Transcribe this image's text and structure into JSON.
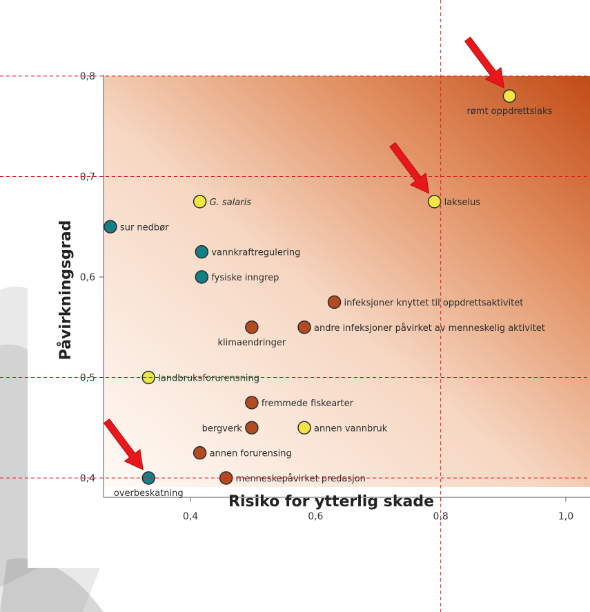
{
  "chart_data": {
    "type": "scatter",
    "title": "",
    "xlabel": "Risiko for ytterlig skade",
    "ylabel": "Påvirkningsgrad",
    "xlim": [
      0.26,
      1.06
    ],
    "ylim": [
      0.38,
      0.8
    ],
    "xticks": [
      {
        "value": 0.4,
        "label": "0,4"
      },
      {
        "value": 0.6,
        "label": "0,6"
      },
      {
        "value": 0.8,
        "label": "0,8"
      },
      {
        "value": 1.0,
        "label": "1,0"
      }
    ],
    "yticks": [
      {
        "value": 0.4,
        "label": "0,4"
      },
      {
        "value": 0.5,
        "label": "0,5"
      },
      {
        "value": 0.6,
        "label": "0,6"
      },
      {
        "value": 0.7,
        "label": "0,7"
      },
      {
        "value": 0.8,
        "label": "0,8"
      }
    ],
    "grid": false,
    "colors": {
      "teal": "#137f86",
      "orange": "#b24b22",
      "yellow": "#f1e447",
      "background_light": "#fffaf6",
      "background_dark": "#c24b16",
      "reference_lines": "#e8171b",
      "arrows": "#e8171b"
    },
    "points": [
      {
        "x": 0.91,
        "y": 0.78,
        "label": "rømt oppdrettslaks",
        "color": "yellow",
        "label_pos": "below"
      },
      {
        "x": 0.79,
        "y": 0.675,
        "label": "lakselus",
        "color": "yellow",
        "label_pos": "right"
      },
      {
        "x": 0.415,
        "y": 0.675,
        "label": "G. salaris",
        "color": "yellow",
        "label_pos": "right",
        "italic": true
      },
      {
        "x": 0.272,
        "y": 0.65,
        "label": "sur nedbør",
        "color": "teal",
        "label_pos": "right"
      },
      {
        "x": 0.418,
        "y": 0.625,
        "label": "vannkraftregulering",
        "color": "teal",
        "label_pos": "right"
      },
      {
        "x": 0.418,
        "y": 0.6,
        "label": "fysiske inngrep",
        "color": "teal",
        "label_pos": "right"
      },
      {
        "x": 0.63,
        "y": 0.575,
        "label": "infeksjoner knyttet til oppdrettsaktivitet",
        "color": "orange",
        "label_pos": "right"
      },
      {
        "x": 0.498,
        "y": 0.55,
        "label": "klimaendringer",
        "color": "orange",
        "label_pos": "below"
      },
      {
        "x": 0.582,
        "y": 0.55,
        "label": "andre infeksjoner påvirket av menneskelig aktivitet",
        "color": "orange",
        "label_pos": "right"
      },
      {
        "x": 0.333,
        "y": 0.5,
        "label": "landbruksforurensning",
        "color": "yellow",
        "label_pos": "right"
      },
      {
        "x": 0.498,
        "y": 0.475,
        "label": "fremmede fiskearter",
        "color": "orange",
        "label_pos": "right"
      },
      {
        "x": 0.498,
        "y": 0.45,
        "label": "bergverk",
        "color": "orange",
        "label_pos": "left"
      },
      {
        "x": 0.582,
        "y": 0.45,
        "label": "annen vannbruk",
        "color": "yellow",
        "label_pos": "right"
      },
      {
        "x": 0.415,
        "y": 0.425,
        "label": "annen forurensing",
        "color": "orange",
        "label_pos": "right"
      },
      {
        "x": 0.457,
        "y": 0.4,
        "label": "menneskepåvirket predasjon",
        "color": "orange",
        "label_pos": "right"
      },
      {
        "x": 0.333,
        "y": 0.4,
        "label": "overbeskatning",
        "color": "teal",
        "label_pos": "below"
      }
    ],
    "reference_lines": {
      "x": [
        0.8
      ],
      "y": [
        0.8,
        0.7,
        0.5,
        0.4
      ]
    },
    "highlight_arrows": [
      "rømt oppdrettslaks",
      "lakselus",
      "overbeskatning"
    ]
  }
}
